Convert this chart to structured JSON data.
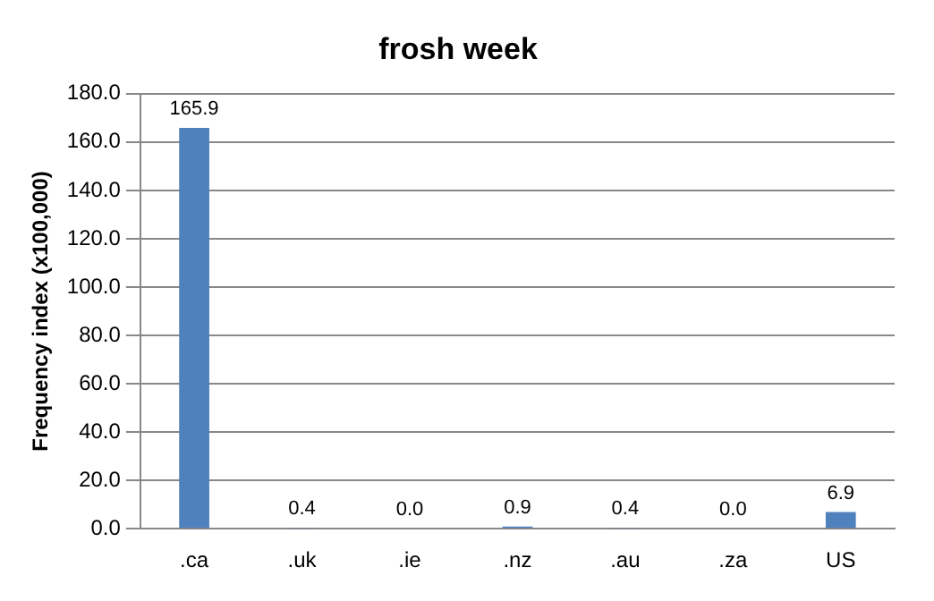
{
  "chart_data": {
    "type": "bar",
    "title": "frosh week",
    "ylabel": "Frequency index (x100,000)",
    "categories": [
      ".ca",
      ".uk",
      ".ie",
      ".nz",
      ".au",
      ".za",
      "US"
    ],
    "values": [
      165.9,
      0.4,
      0.0,
      0.9,
      0.4,
      0.0,
      6.9
    ],
    "value_labels": [
      "165.9",
      "0.4",
      "0.0",
      "0.9",
      "0.4",
      "0.0",
      "6.9"
    ],
    "color": "#4f81bd",
    "ylim": [
      0,
      180
    ],
    "yticks": [
      {
        "value": 0,
        "label": "0.0"
      },
      {
        "value": 20,
        "label": "20.0"
      },
      {
        "value": 40,
        "label": "40.0"
      },
      {
        "value": 60,
        "label": "60.0"
      },
      {
        "value": 80,
        "label": "80.0"
      },
      {
        "value": 100,
        "label": "100.0"
      },
      {
        "value": 120,
        "label": "120.0"
      },
      {
        "value": 140,
        "label": "140.0"
      },
      {
        "value": 160,
        "label": "160.0"
      },
      {
        "value": 180,
        "label": "180.0"
      }
    ],
    "grid": "y"
  }
}
